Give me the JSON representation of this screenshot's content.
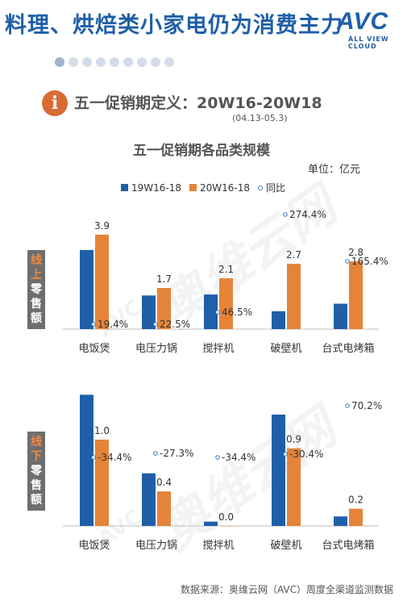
{
  "header": {
    "headline": "料理、烘焙类小家电仍为消费主力",
    "logo_text": "AVC",
    "logo_sub": "ALL VIEW CLOUD"
  },
  "period": {
    "label": "五一促销期定义：20W16-20W18",
    "dates": "(04.13-05.3)"
  },
  "chart_title": "五一促销期各品类规模",
  "unit": "单位：亿元",
  "watermark": "奥维云网",
  "legend": {
    "s1": "19W16-18",
    "s2": "20W16-18",
    "s3": "同比"
  },
  "colors": {
    "s1": "#1f5fa8",
    "s2": "#e58439",
    "yoy": "#3a7bc8"
  },
  "side_labels": {
    "online": [
      "线",
      "上",
      "零",
      "售",
      "额"
    ],
    "offline": [
      "线",
      "下",
      "零",
      "售",
      "额"
    ]
  },
  "source": "数据来源：奥维云网（AVC）周度全渠道监测数据",
  "chart_data": [
    {
      "type": "bar",
      "panel": "online",
      "categories": [
        "电饭煲",
        "电压力锅",
        "搅拌机",
        "破壁机",
        "台式电烤箱"
      ],
      "series": [
        {
          "name": "19W16-18",
          "values": [
            3.27,
            1.39,
            1.43,
            0.74,
            1.05
          ]
        },
        {
          "name": "20W16-18",
          "values": [
            3.9,
            1.7,
            2.1,
            2.7,
            2.8
          ],
          "labels": [
            "3.9",
            "1.7",
            "2.1",
            "2.7",
            "2.8"
          ]
        }
      ],
      "yoy": {
        "name": "同比",
        "values": [
          19.4,
          22.5,
          46.5,
          274.4,
          165.4
        ],
        "labels": [
          "19.4%",
          "22.5%",
          "46.5%",
          "274.4%",
          "165.4%"
        ]
      },
      "ylim": [
        0,
        4.5
      ]
    },
    {
      "type": "bar",
      "panel": "offline",
      "categories": [
        "电饭煲",
        "电压力锅",
        "搅拌机",
        "破壁机",
        "台式电烤箱"
      ],
      "series": [
        {
          "name": "19W16-18",
          "values": [
            1.52,
            0.61,
            0.05,
            1.29,
            0.11
          ]
        },
        {
          "name": "20W16-18",
          "values": [
            1.0,
            0.4,
            0.0,
            0.9,
            0.2
          ],
          "labels": [
            "1.0",
            "0.4",
            "0.0",
            "0.9",
            "0.2"
          ]
        }
      ],
      "yoy": {
        "name": "同比",
        "values": [
          -34.4,
          -27.3,
          -34.4,
          -30.4,
          70.2
        ],
        "labels": [
          "-34.4%",
          "-27.3%",
          "-34.4%",
          "-30.4%",
          "70.2%"
        ]
      },
      "ylim": [
        0,
        1.6
      ]
    }
  ]
}
